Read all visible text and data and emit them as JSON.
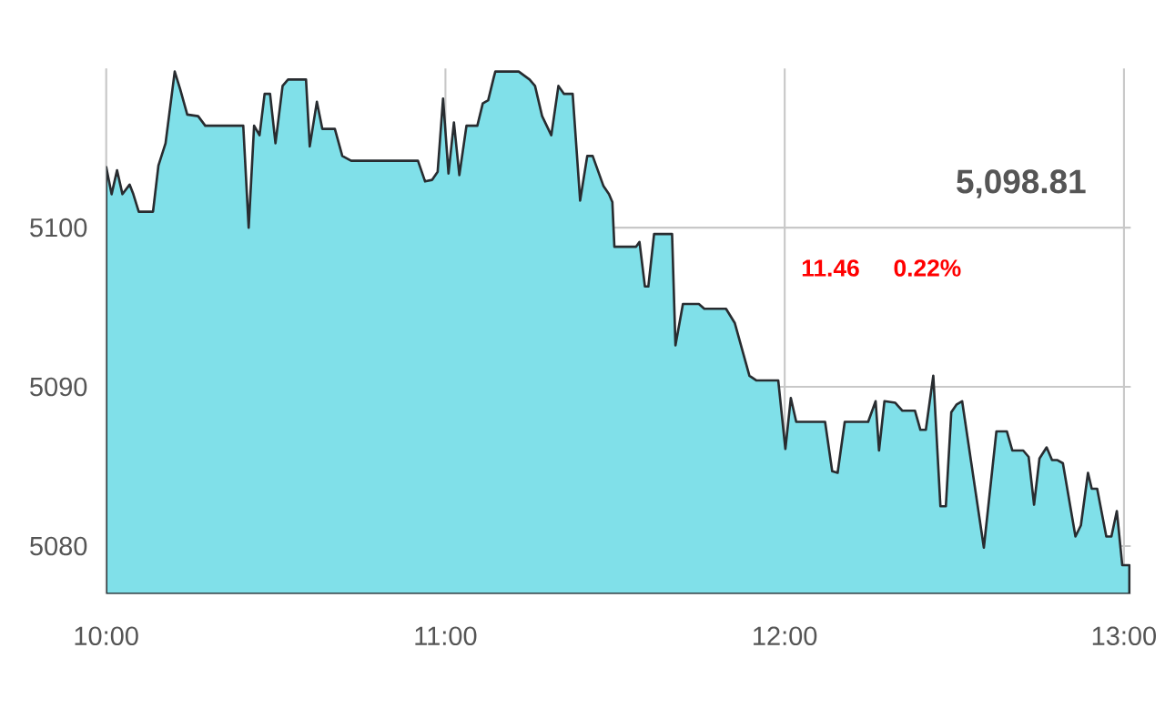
{
  "chart_data": {
    "type": "area",
    "x": [
      10.0,
      10.016,
      10.032,
      10.048,
      10.069,
      10.08,
      10.096,
      10.122,
      10.138,
      10.154,
      10.175,
      10.202,
      10.218,
      10.239,
      10.271,
      10.292,
      10.404,
      10.42,
      10.436,
      10.452,
      10.467,
      10.483,
      10.499,
      10.52,
      10.536,
      10.589,
      10.6,
      10.621,
      10.637,
      10.674,
      10.696,
      10.722,
      10.919,
      10.94,
      10.961,
      10.977,
      10.993,
      11.009,
      11.025,
      11.041,
      11.062,
      11.094,
      11.11,
      11.126,
      11.142,
      11.147,
      11.216,
      11.248,
      11.264,
      11.285,
      11.312,
      11.333,
      11.349,
      11.375,
      11.397,
      11.418,
      11.434,
      11.466,
      11.482,
      11.492,
      11.498,
      11.562,
      11.572,
      11.588,
      11.598,
      11.615,
      11.668,
      11.678,
      11.7,
      11.747,
      11.763,
      11.827,
      11.853,
      11.896,
      11.917,
      11.981,
      12.002,
      12.018,
      12.034,
      12.119,
      12.14,
      12.156,
      12.177,
      12.246,
      12.268,
      12.278,
      12.294,
      12.326,
      12.347,
      12.384,
      12.4,
      12.416,
      12.438,
      12.459,
      12.475,
      12.491,
      12.507,
      12.523,
      12.587,
      12.624,
      12.655,
      12.671,
      12.703,
      12.719,
      12.735,
      12.751,
      12.772,
      12.788,
      12.804,
      12.82,
      12.857,
      12.873,
      12.894,
      12.905,
      12.921,
      12.948,
      12.963,
      12.979,
      12.995,
      13.016
    ],
    "values": [
      5103.8,
      5102.1,
      5103.6,
      5102.1,
      5102.7,
      5102.1,
      5101.0,
      5101.0,
      5101.0,
      5103.9,
      5105.3,
      5109.8,
      5108.7,
      5107.1,
      5107.0,
      5106.4,
      5106.4,
      5100.0,
      5106.4,
      5105.8,
      5108.4,
      5108.4,
      5105.3,
      5108.9,
      5109.3,
      5109.3,
      5105.1,
      5107.9,
      5106.2,
      5106.2,
      5104.5,
      5104.2,
      5104.2,
      5102.9,
      5103.0,
      5103.5,
      5108.1,
      5103.4,
      5106.6,
      5103.3,
      5106.4,
      5106.4,
      5107.8,
      5108.0,
      5109.4,
      5109.8,
      5109.8,
      5109.3,
      5108.9,
      5107.0,
      5105.8,
      5108.9,
      5108.4,
      5108.4,
      5101.7,
      5104.5,
      5104.5,
      5102.6,
      5102.1,
      5101.6,
      5098.8,
      5098.8,
      5099.1,
      5096.3,
      5096.3,
      5099.6,
      5099.6,
      5092.6,
      5095.2,
      5095.2,
      5094.9,
      5094.9,
      5094.0,
      5090.7,
      5090.4,
      5090.4,
      5086.1,
      5089.3,
      5087.8,
      5087.8,
      5084.7,
      5084.6,
      5087.8,
      5087.8,
      5089.1,
      5086.0,
      5089.1,
      5089.0,
      5088.5,
      5088.5,
      5087.3,
      5087.3,
      5090.7,
      5082.5,
      5082.5,
      5088.4,
      5088.9,
      5089.1,
      5079.9,
      5087.2,
      5087.2,
      5086.0,
      5086.0,
      5085.6,
      5082.6,
      5085.5,
      5086.2,
      5085.4,
      5085.4,
      5085.2,
      5080.6,
      5081.3,
      5084.6,
      5083.6,
      5083.6,
      5080.6,
      5080.6,
      5082.2,
      5078.8,
      5078.8
    ],
    "color": "#80e0e9",
    "xlim": [
      10,
      13.02
    ],
    "ylim": [
      5077,
      5110
    ],
    "xticks": [
      {
        "value": 10,
        "label": "10:00"
      },
      {
        "value": 11,
        "label": "11:00"
      },
      {
        "value": 12,
        "label": "12:00"
      },
      {
        "value": 13,
        "label": "13:00"
      }
    ],
    "yticks": [
      5080,
      5090,
      5100
    ],
    "grid": true,
    "annotations": [
      "5,098.81",
      "11.46",
      "0.22%"
    ]
  }
}
